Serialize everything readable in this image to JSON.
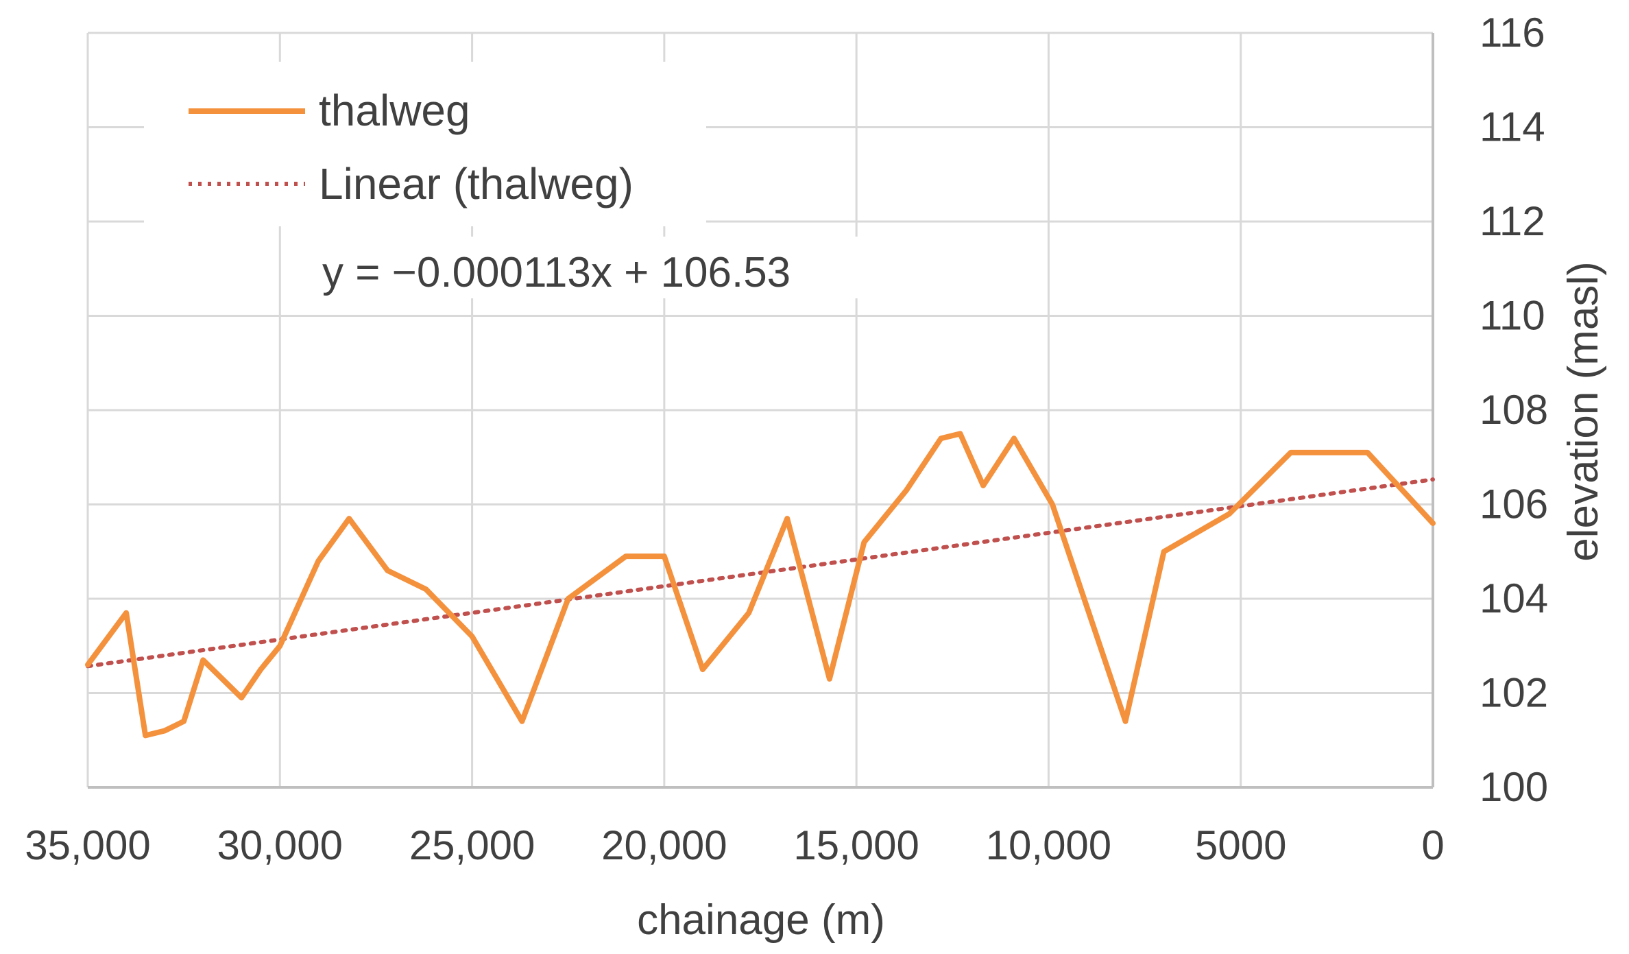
{
  "chart_data": {
    "type": "line",
    "xlabel": "chainage (m)",
    "ylabel": "elevation (masl)",
    "xlim": [
      35000,
      0
    ],
    "x_reversed": true,
    "ylim": [
      100,
      116
    ],
    "y_axis_side": "right",
    "x_ticks": [
      35000,
      30000,
      25000,
      20000,
      15000,
      10000,
      5000,
      0
    ],
    "x_tick_labels": [
      "35,000",
      "30,000",
      "25,000",
      "20,000",
      "15,000",
      "10,000",
      "5000",
      "0"
    ],
    "y_ticks": [
      100,
      102,
      104,
      106,
      108,
      110,
      112,
      114,
      116
    ],
    "y_tick_labels": [
      "100",
      "102",
      "104",
      "106",
      "108",
      "110",
      "112",
      "114",
      "116"
    ],
    "grid": true,
    "legend_position": "top-left",
    "colors": {
      "thalweg": "#f4913d",
      "trendline": "#c0504d",
      "grid": "#d9d9d9",
      "axis": "#bfbfbf"
    },
    "series": [
      {
        "name": "thalweg",
        "style": "solid",
        "x": [
          35000,
          34000,
          33500,
          33000,
          32500,
          32000,
          31500,
          31000,
          30500,
          30000,
          29000,
          28200,
          27200,
          26200,
          25000,
          23700,
          22500,
          21000,
          20000,
          19000,
          17800,
          16800,
          15700,
          14800,
          13700,
          12800,
          12300,
          11700,
          10900,
          9900,
          8000,
          7000,
          5300,
          3700,
          2900,
          1700,
          0
        ],
        "y": [
          102.6,
          103.7,
          101.1,
          101.2,
          101.4,
          102.7,
          102.3,
          101.9,
          102.5,
          103.0,
          104.8,
          105.7,
          104.6,
          104.2,
          103.2,
          101.4,
          104.0,
          104.9,
          104.9,
          102.5,
          103.7,
          105.7,
          102.3,
          105.2,
          106.3,
          107.4,
          107.5,
          106.4,
          107.4,
          106.0,
          101.4,
          105.0,
          105.8,
          107.1,
          107.1,
          107.1,
          105.6
        ]
      },
      {
        "name": "Linear (thalweg)",
        "style": "dotted",
        "x": [
          35000,
          0
        ],
        "y": [
          102.57,
          106.53
        ]
      }
    ],
    "annotations": [
      {
        "text": "y = −0.000113x + 106.53"
      }
    ]
  }
}
